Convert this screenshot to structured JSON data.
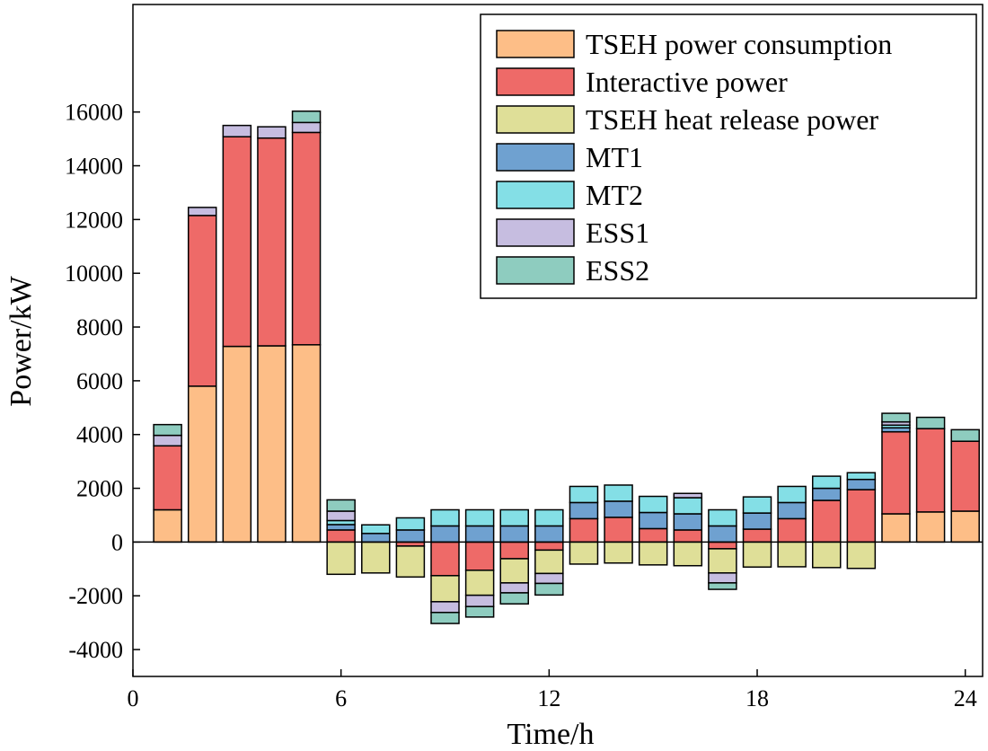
{
  "chart_data": {
    "type": "bar",
    "stacked": true,
    "xlabel": "Time/h",
    "ylabel": "Power/kW",
    "xlim": [
      0,
      24.5
    ],
    "ylim": [
      -5000,
      20000
    ],
    "x_ticks": [
      "0",
      "6",
      "12",
      "18",
      "24"
    ],
    "y_ticks": [
      "-4000",
      "-2000",
      "0",
      "2000",
      "4000",
      "6000",
      "8000",
      "10000",
      "12000",
      "14000",
      "16000"
    ],
    "legend_position": "top-right",
    "categories": [
      1,
      2,
      3,
      4,
      5,
      6,
      7,
      8,
      9,
      10,
      11,
      12,
      13,
      14,
      15,
      16,
      17,
      18,
      19,
      20,
      21,
      22,
      23,
      24
    ],
    "series": [
      {
        "name": "TSEH power consumption",
        "color": "#FDBE87",
        "values": [
          1200,
          5800,
          7280,
          7300,
          7340,
          0,
          0,
          0,
          0,
          0,
          0,
          0,
          0,
          0,
          0,
          0,
          0,
          0,
          0,
          0,
          0,
          1050,
          1120,
          1150
        ]
      },
      {
        "name": "Interactive power",
        "color": "#EE6A68",
        "values": [
          2380,
          6350,
          7800,
          7730,
          7900,
          450,
          0,
          -150,
          -1250,
          -1050,
          -620,
          -300,
          870,
          920,
          500,
          450,
          -250,
          480,
          870,
          1550,
          1950,
          3050,
          3100,
          2600
        ]
      },
      {
        "name": "TSEH heat release power",
        "color": "#DFDF98",
        "values": [
          0,
          0,
          0,
          0,
          0,
          -1200,
          -1150,
          -1150,
          -970,
          -930,
          -900,
          -870,
          -820,
          -780,
          -850,
          -880,
          -900,
          -930,
          -920,
          -950,
          -980,
          0,
          0,
          0
        ]
      },
      {
        "name": "MT1",
        "color": "#6FA1D0",
        "values": [
          0,
          0,
          0,
          0,
          0,
          200,
          320,
          450,
          600,
          600,
          600,
          600,
          600,
          600,
          600,
          600,
          600,
          600,
          600,
          450,
          380,
          150,
          0,
          0
        ]
      },
      {
        "name": "MT2",
        "color": "#84DFE6",
        "values": [
          0,
          0,
          0,
          0,
          0,
          150,
          320,
          450,
          600,
          600,
          600,
          600,
          600,
          600,
          600,
          600,
          600,
          600,
          600,
          450,
          250,
          100,
          0,
          0
        ]
      },
      {
        "name": "ESS1",
        "color": "#C6BDE0",
        "values": [
          390,
          300,
          420,
          420,
          370,
          350,
          0,
          0,
          -400,
          -420,
          -370,
          -370,
          0,
          0,
          0,
          160,
          -370,
          0,
          0,
          0,
          0,
          120,
          0,
          0
        ]
      },
      {
        "name": "ESS2",
        "color": "#8ECCBF",
        "values": [
          400,
          0,
          0,
          0,
          420,
          420,
          0,
          0,
          -410,
          -390,
          -410,
          -430,
          0,
          0,
          0,
          0,
          -240,
          0,
          0,
          0,
          0,
          320,
          420,
          430
        ]
      }
    ]
  }
}
